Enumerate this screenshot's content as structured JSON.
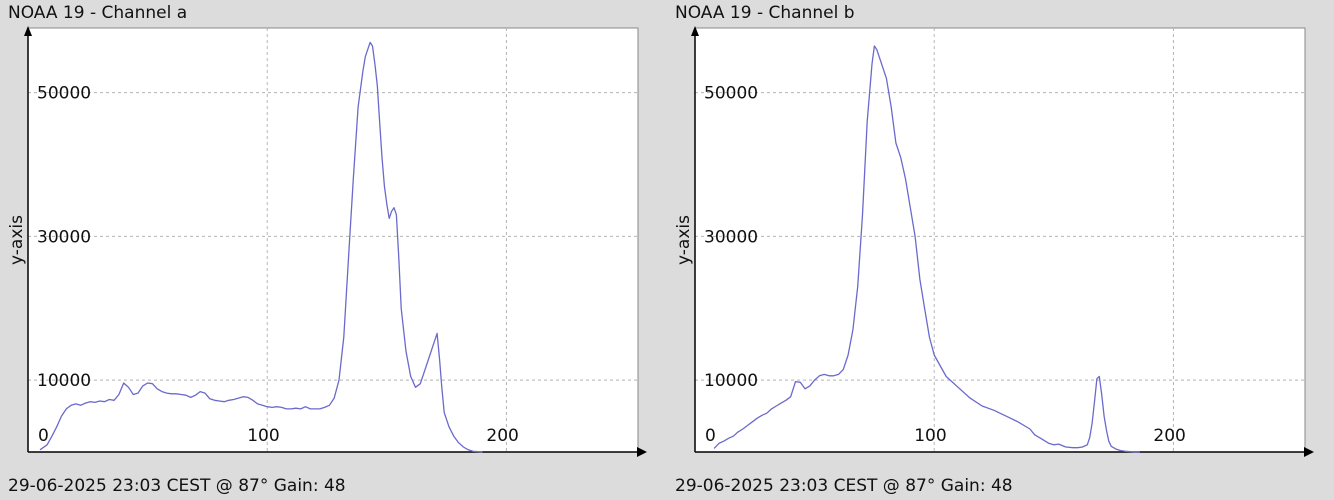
{
  "colors": {
    "background": "#dcdcdc",
    "plot_bg": "#ffffff",
    "line": "#6a6acd",
    "grid": "#b4b4b4",
    "axis": "#000000"
  },
  "panels": [
    {
      "title": "NOAA 19 - Channel a",
      "footer": "29-06-2025 23:03 CEST @ 87° Gain: 48"
    },
    {
      "title": "NOAA 19 - Channel b",
      "footer": "29-06-2025 23:03 CEST @ 87° Gain: 48"
    }
  ],
  "chart_data": [
    {
      "type": "line",
      "title": "NOAA 19 - Channel a",
      "xlabel": "",
      "ylabel": "y-axis",
      "xlim": [
        0,
        255
      ],
      "ylim": [
        0,
        59000
      ],
      "xticks": [
        0,
        100,
        200
      ],
      "yticks": [
        10000,
        30000,
        50000
      ],
      "grid": true,
      "series": [
        {
          "x": [
            5,
            8,
            10,
            12,
            14,
            16,
            18,
            20,
            22,
            24,
            26,
            28,
            30,
            32,
            34,
            36,
            38,
            40,
            42,
            44,
            46,
            48,
            50,
            52,
            54,
            56,
            58,
            60,
            62,
            64,
            66,
            68,
            70,
            72,
            74,
            76,
            78,
            80,
            82,
            84,
            86,
            88,
            90,
            92,
            94,
            96,
            98,
            100,
            102,
            104,
            106,
            108,
            110,
            112,
            114,
            116,
            118,
            120,
            122,
            124,
            126,
            128,
            130,
            132,
            134,
            136,
            138,
            140,
            141,
            142,
            143,
            144,
            145,
            146,
            147,
            148,
            149,
            150,
            151,
            152,
            153,
            154,
            155,
            156,
            158,
            160,
            162,
            164,
            166,
            168,
            170,
            171,
            172,
            173,
            174,
            176,
            178,
            180,
            182,
            184,
            186,
            188,
            190
          ],
          "y": [
            300,
            1000,
            2200,
            3500,
            5000,
            6000,
            6500,
            6700,
            6500,
            6800,
            7000,
            6900,
            7100,
            7000,
            7300,
            7200,
            8000,
            9600,
            9000,
            8000,
            8200,
            9200,
            9600,
            9500,
            8800,
            8400,
            8200,
            8100,
            8100,
            8000,
            7900,
            7600,
            7900,
            8400,
            8200,
            7400,
            7200,
            7100,
            7000,
            7200,
            7300,
            7500,
            7700,
            7600,
            7200,
            6700,
            6500,
            6300,
            6200,
            6300,
            6200,
            6000,
            6000,
            6100,
            6000,
            6300,
            6000,
            6000,
            6000,
            6200,
            6500,
            7500,
            10000,
            16000,
            27000,
            38000,
            48000,
            53000,
            55000,
            56000,
            57000,
            56500,
            54000,
            51000,
            46000,
            41000,
            37000,
            34500,
            32500,
            33500,
            34000,
            33000,
            27000,
            20000,
            14000,
            10500,
            9000,
            9500,
            11500,
            13500,
            15500,
            16500,
            13000,
            9000,
            5500,
            3500,
            2200,
            1300,
            700,
            300,
            100,
            50,
            0
          ]
        }
      ]
    },
    {
      "type": "line",
      "title": "NOAA 19 - Channel b",
      "xlabel": "",
      "ylabel": "y-axis",
      "xlim": [
        0,
        255
      ],
      "ylim": [
        0,
        59000
      ],
      "xticks": [
        0,
        100,
        200
      ],
      "yticks": [
        10000,
        30000,
        50000
      ],
      "grid": true,
      "series": [
        {
          "x": [
            8,
            10,
            12,
            14,
            16,
            18,
            20,
            22,
            24,
            26,
            28,
            30,
            32,
            34,
            36,
            38,
            40,
            42,
            44,
            46,
            48,
            50,
            52,
            54,
            56,
            58,
            60,
            62,
            64,
            66,
            68,
            70,
            72,
            74,
            75,
            76,
            78,
            80,
            82,
            84,
            86,
            88,
            90,
            92,
            94,
            96,
            98,
            100,
            105,
            110,
            115,
            120,
            125,
            130,
            135,
            140,
            142,
            145,
            148,
            150,
            152,
            155,
            158,
            160,
            162,
            164,
            165,
            166,
            167,
            168,
            169,
            170,
            171,
            172,
            173,
            174,
            176,
            178,
            180,
            182,
            184,
            186
          ],
          "y": [
            500,
            1200,
            1500,
            1900,
            2200,
            2800,
            3200,
            3700,
            4200,
            4700,
            5100,
            5400,
            6000,
            6400,
            6800,
            7200,
            7700,
            9800,
            9700,
            8800,
            9200,
            10000,
            10600,
            10800,
            10600,
            10600,
            10800,
            11500,
            13500,
            17000,
            23000,
            33000,
            46000,
            54000,
            56500,
            56000,
            54000,
            52000,
            48000,
            43000,
            41000,
            38000,
            34000,
            30000,
            24000,
            20000,
            16000,
            13500,
            10500,
            9000,
            7500,
            6400,
            5800,
            5000,
            4200,
            3200,
            2400,
            1800,
            1200,
            1000,
            1100,
            700,
            600,
            600,
            700,
            1000,
            2000,
            4000,
            7000,
            10200,
            10500,
            8000,
            5000,
            3000,
            1500,
            800,
            400,
            200,
            100,
            50,
            0,
            0
          ]
        }
      ]
    }
  ]
}
